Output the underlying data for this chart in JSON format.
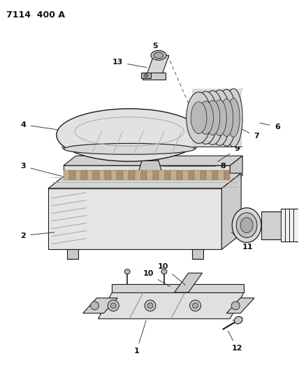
{
  "title": "7114  400 A",
  "bg_color": "#ffffff",
  "line_color": "#1a1a1a",
  "label_color": "#111111",
  "fig_width": 4.28,
  "fig_height": 5.33,
  "dpi": 100
}
